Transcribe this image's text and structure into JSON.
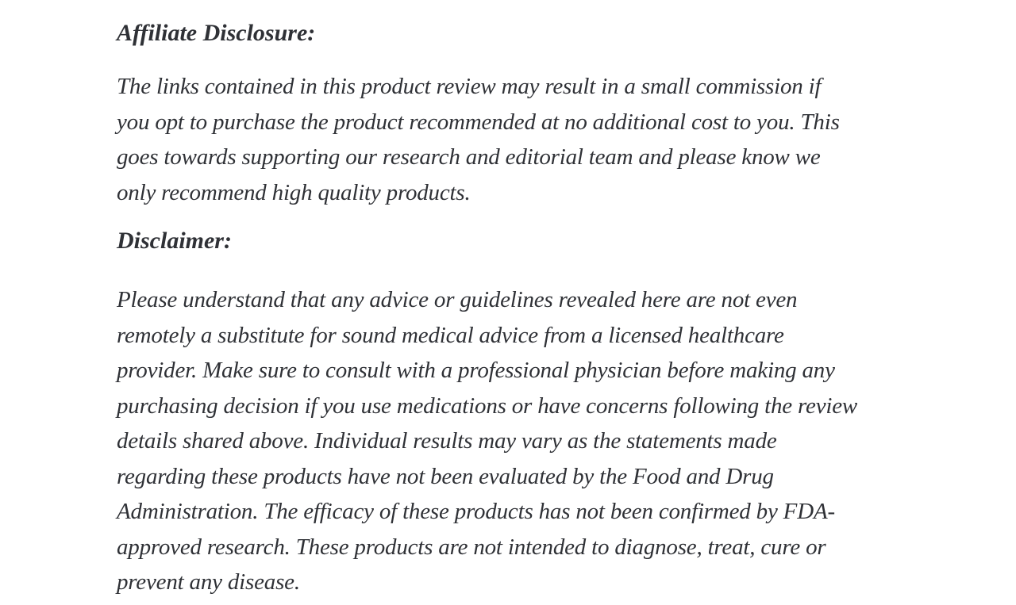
{
  "page": {
    "background_color": "#ffffff",
    "text_color": "#2f3136"
  },
  "article": {
    "affiliate": {
      "heading": "Affiliate Disclosure:",
      "lines": [
        "The links contained in this product review may result in a small commission if",
        "you opt to purchase the product recommended at no additional cost to you. This",
        "goes towards supporting our research and editorial team and please know we",
        "only recommend high quality products."
      ],
      "full_text": "The links contained in this product review may result in a small commission if you opt to purchase the product recommended at no additional cost to you. This goes towards supporting our research and editorial team and please know we only recommend high quality products."
    },
    "disclaimer": {
      "heading": "Disclaimer:",
      "lines": [
        "Please understand that any advice or guidelines revealed here are not even",
        "remotely a substitute for sound medical advice from a licensed healthcare",
        "provider. Make sure to consult with a professional physician before making any",
        "purchasing decision if you use medications or have concerns following the review",
        "details shared above. Individual results may vary as the statements made",
        "regarding these products have not been evaluated by the Food and Drug",
        "Administration. The efficacy of these products has not been confirmed by FDA-",
        "approved research. These products are not intended to diagnose, treat, cure or",
        "prevent any disease."
      ],
      "full_text": "Please understand that any advice or guidelines revealed here are not even remotely a substitute for sound medical advice from a licensed healthcare provider. Make sure to consult with a professional physician before making any purchasing decision if you use medications or have concerns following the review details shared above. Individual results may vary as the statements made regarding these products have not been evaluated by the Food and Drug Administration. The efficacy of these products has not been confirmed by FDA-approved research. These products are not intended to diagnose, treat, cure or prevent any disease."
    }
  }
}
